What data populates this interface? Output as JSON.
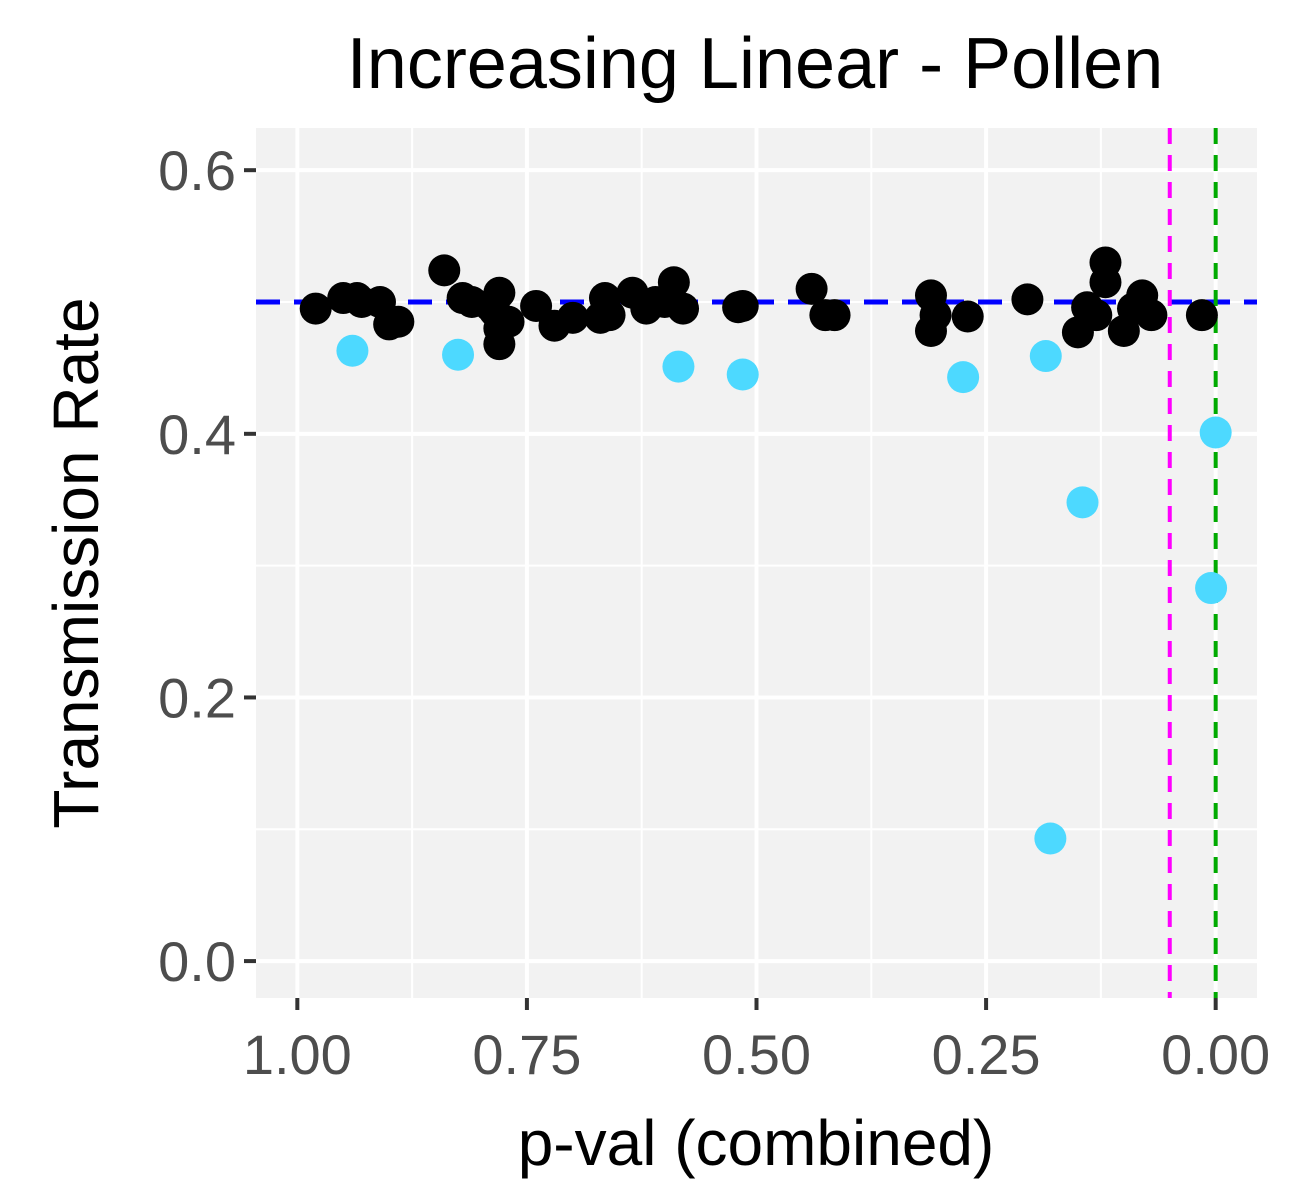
{
  "chart_data": {
    "type": "scatter",
    "title": "Increasing Linear - Pollen",
    "xlabel": "p-val (combined)",
    "ylabel": "Transmission Rate",
    "x_reversed": true,
    "xlim": [
      1.045,
      -0.045
    ],
    "ylim": [
      -0.028,
      0.632
    ],
    "x_ticks": [
      1.0,
      0.75,
      0.5,
      0.25,
      0.0
    ],
    "x_tick_labels": [
      "1.00",
      "0.75",
      "0.50",
      "0.25",
      "0.00"
    ],
    "y_ticks": [
      0.0,
      0.2,
      0.4,
      0.6
    ],
    "y_tick_labels": [
      "0.0",
      "0.2",
      "0.4",
      "0.6"
    ],
    "grid": true,
    "panel_background": "#f2f2f2",
    "reference_lines": [
      {
        "orientation": "horizontal",
        "value": 0.5,
        "color": "#0000ff",
        "style": "dashed"
      },
      {
        "orientation": "vertical",
        "value": 0.05,
        "color": "#ff00ff",
        "style": "dashed"
      },
      {
        "orientation": "vertical",
        "value": 0.0,
        "color": "#00aa00",
        "style": "dashed"
      }
    ],
    "series": [
      {
        "color": "#000000",
        "points": [
          [
            0.98,
            0.495
          ],
          [
            0.95,
            0.503
          ],
          [
            0.935,
            0.503
          ],
          [
            0.93,
            0.5
          ],
          [
            0.91,
            0.5
          ],
          [
            0.9,
            0.483
          ],
          [
            0.89,
            0.485
          ],
          [
            0.84,
            0.524
          ],
          [
            0.82,
            0.503
          ],
          [
            0.81,
            0.5
          ],
          [
            0.79,
            0.497
          ],
          [
            0.785,
            0.493
          ],
          [
            0.78,
            0.507
          ],
          [
            0.78,
            0.48
          ],
          [
            0.78,
            0.468
          ],
          [
            0.77,
            0.485
          ],
          [
            0.74,
            0.497
          ],
          [
            0.72,
            0.482
          ],
          [
            0.7,
            0.488
          ],
          [
            0.67,
            0.488
          ],
          [
            0.665,
            0.503
          ],
          [
            0.66,
            0.49
          ],
          [
            0.635,
            0.507
          ],
          [
            0.62,
            0.495
          ],
          [
            0.61,
            0.5
          ],
          [
            0.6,
            0.5
          ],
          [
            0.59,
            0.515
          ],
          [
            0.58,
            0.495
          ],
          [
            0.52,
            0.496
          ],
          [
            0.515,
            0.497
          ],
          [
            0.44,
            0.51
          ],
          [
            0.425,
            0.49
          ],
          [
            0.415,
            0.49
          ],
          [
            0.31,
            0.505
          ],
          [
            0.31,
            0.478
          ],
          [
            0.305,
            0.49
          ],
          [
            0.27,
            0.489
          ],
          [
            0.205,
            0.502
          ],
          [
            0.15,
            0.477
          ],
          [
            0.14,
            0.496
          ],
          [
            0.13,
            0.49
          ],
          [
            0.12,
            0.53
          ],
          [
            0.12,
            0.515
          ],
          [
            0.1,
            0.478
          ],
          [
            0.09,
            0.495
          ],
          [
            0.08,
            0.505
          ],
          [
            0.07,
            0.49
          ],
          [
            0.015,
            0.49
          ]
        ]
      },
      {
        "color": "#4dd9ff",
        "points": [
          [
            0.94,
            0.463
          ],
          [
            0.825,
            0.46
          ],
          [
            0.585,
            0.451
          ],
          [
            0.515,
            0.445
          ],
          [
            0.275,
            0.443
          ],
          [
            0.185,
            0.459
          ],
          [
            0.145,
            0.348
          ],
          [
            0.18,
            0.093
          ],
          [
            0.0,
            0.401
          ],
          [
            0.005,
            0.283
          ]
        ]
      }
    ]
  }
}
